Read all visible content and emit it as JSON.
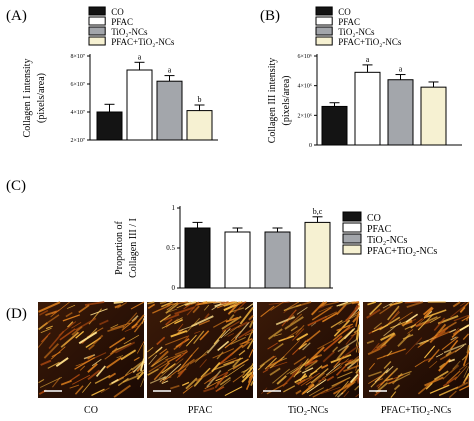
{
  "colors": {
    "CO": "#141414",
    "PFAC": "#ffffff",
    "TiO2-NCs": "#a3a6ab",
    "PFAC+TiO2-NCs": "#f6f1d2",
    "micrograph_bg": "#2a1206",
    "micrograph_fiber": "#e0a030"
  },
  "legend_labels": [
    "CO",
    "PFAC",
    "TiO₂-NCs",
    "PFAC+TiO₂-NCs"
  ],
  "chart_data": [
    {
      "panel": "(A)",
      "type": "bar",
      "categories": [
        "CO",
        "PFAC",
        "TiO2-NCs",
        "PFAC+TiO2-NCs"
      ],
      "values": [
        40000000,
        70000000,
        62000000,
        41000000
      ],
      "errors": [
        5500000,
        5500000,
        4000000,
        4000000
      ],
      "sig": [
        "",
        "a",
        "a",
        "b"
      ],
      "ylabel": "Collagen I intensity",
      "ylabel2": "(pixels/area)",
      "ylim": [
        20000000,
        80000000
      ],
      "yticks": [
        20000000,
        40000000,
        60000000,
        80000000
      ],
      "yticklabels": [
        "2×10⁷",
        "4×10⁷",
        "6×10⁷",
        "8×10⁷"
      ],
      "legend": "top-right"
    },
    {
      "panel": "(B)",
      "type": "bar",
      "categories": [
        "CO",
        "PFAC",
        "TiO2-NCs",
        "PFAC+TiO2-NCs"
      ],
      "values": [
        2600000,
        4900000,
        4400000,
        3900000
      ],
      "errors": [
        250000,
        500000,
        350000,
        350000
      ],
      "sig": [
        "",
        "a",
        "a",
        ""
      ],
      "ylabel": "Collagen III intensity",
      "ylabel2": "(pixels/area)",
      "ylim": [
        0,
        6000000
      ],
      "yticks": [
        0,
        2000000,
        4000000,
        6000000
      ],
      "yticklabels": [
        "0",
        "2×10⁶",
        "4×10⁶",
        "6×10⁶"
      ],
      "legend": "top-right"
    },
    {
      "panel": "(C)",
      "type": "bar",
      "categories": [
        "CO",
        "PFAC",
        "TiO2-NCs",
        "PFAC+TiO2-NCs"
      ],
      "values": [
        0.75,
        0.7,
        0.7,
        0.82
      ],
      "errors": [
        0.07,
        0.05,
        0.05,
        0.07
      ],
      "sig": [
        "",
        "",
        "",
        "b,c"
      ],
      "ylabel": "Proportion of",
      "ylabel2": "Collagen III / I",
      "ylim": [
        0,
        1
      ],
      "yticks": [
        0,
        0.5,
        1
      ],
      "yticklabels": [
        "0",
        "0.5",
        "1"
      ],
      "legend": "right"
    }
  ],
  "panel_d": {
    "label": "(D)",
    "captions": [
      "CO",
      "PFAC",
      "TiO₂-NCs",
      "PFAC+TiO₂-NCs"
    ],
    "fiber_density": [
      0.35,
      0.75,
      0.7,
      0.55
    ]
  }
}
